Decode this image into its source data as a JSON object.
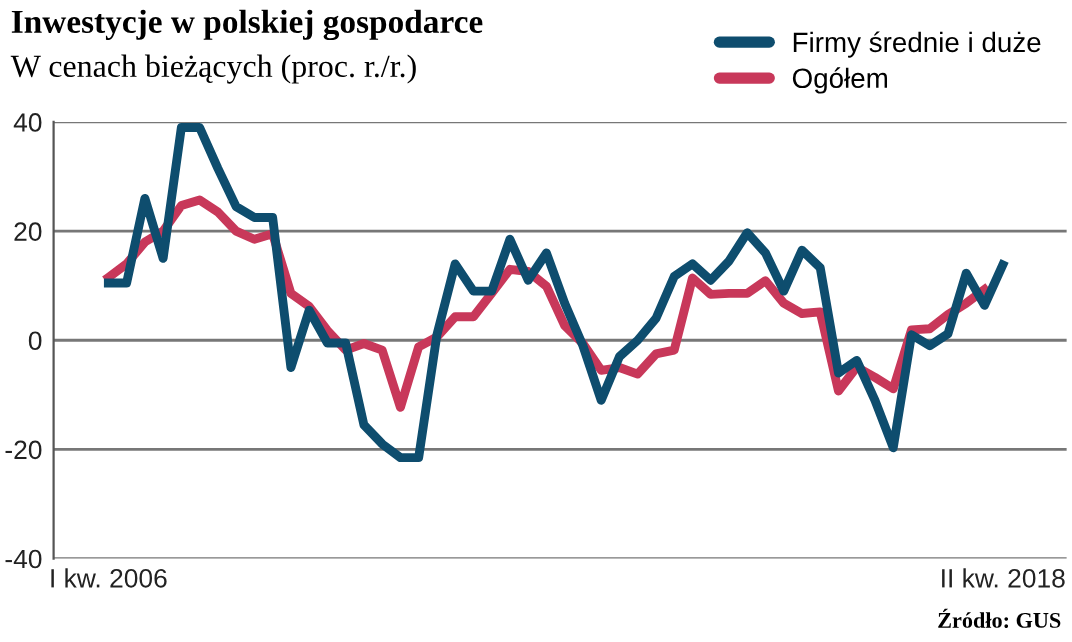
{
  "chart_data": {
    "type": "line",
    "title": "Inwestycje w polskiej gospodarce",
    "subtitle": "W cenach bieżących (proc. r./r.)",
    "categories": [
      "I kw. 2006",
      null,
      null,
      null,
      null,
      null,
      null,
      null,
      null,
      null,
      null,
      null,
      null,
      null,
      null,
      null,
      null,
      null,
      null,
      null,
      null,
      null,
      null,
      null,
      null,
      null,
      null,
      null,
      null,
      null,
      null,
      null,
      null,
      null,
      null,
      null,
      null,
      null,
      null,
      null,
      null,
      null,
      null,
      null,
      null,
      null,
      null,
      null,
      null,
      "II kw. 2018"
    ],
    "series": [
      {
        "name": "Firmy średnie i duże",
        "color": "#0e4d6e",
        "values": [
          10.5,
          10.5,
          26,
          15,
          39,
          39,
          31.5,
          24.5,
          22.5,
          22.5,
          -5,
          5.5,
          -0.5,
          -0.5,
          -15.5,
          -19,
          -21.5,
          -21.5,
          1,
          14,
          9,
          9,
          18.5,
          11,
          16,
          6.8,
          -1,
          -11,
          -3,
          0,
          4,
          11.7,
          14,
          11,
          14.5,
          19.7,
          16,
          9,
          16.5,
          13.3,
          -6,
          -3.7,
          -11,
          -19.7,
          1,
          -1,
          1.2,
          12.3,
          6.4,
          13.8
        ]
      },
      {
        "name": "Ogółem",
        "color": "#c8385a",
        "values": [
          11.5,
          14,
          18,
          20,
          24.7,
          25.7,
          23.5,
          20,
          18.5,
          19.5,
          8.6,
          6.2,
          1.8,
          -1.8,
          -0.6,
          -1.8,
          -12.3,
          -1.2,
          0.6,
          4.3,
          4.3,
          8.6,
          13,
          12.6,
          9.9,
          2.7,
          -0.6,
          -5.5,
          -5,
          -6.2,
          -2.5,
          -1.8,
          11.4,
          8.4,
          8.6,
          8.6,
          10.9,
          6.8,
          4.9,
          5.2,
          -9.3,
          -4.9,
          -6.8,
          -8.9,
          1.9,
          2.1,
          4.7,
          6.8,
          9.3,
          null
        ]
      }
    ],
    "ylim": [
      -40,
      40
    ],
    "yticks": [
      -40,
      -20,
      0,
      20,
      40
    ],
    "grid": "y",
    "legend": "top right",
    "line_style": "solid",
    "marker": "none",
    "annotations": [
      "Źródło: GUS"
    ]
  }
}
